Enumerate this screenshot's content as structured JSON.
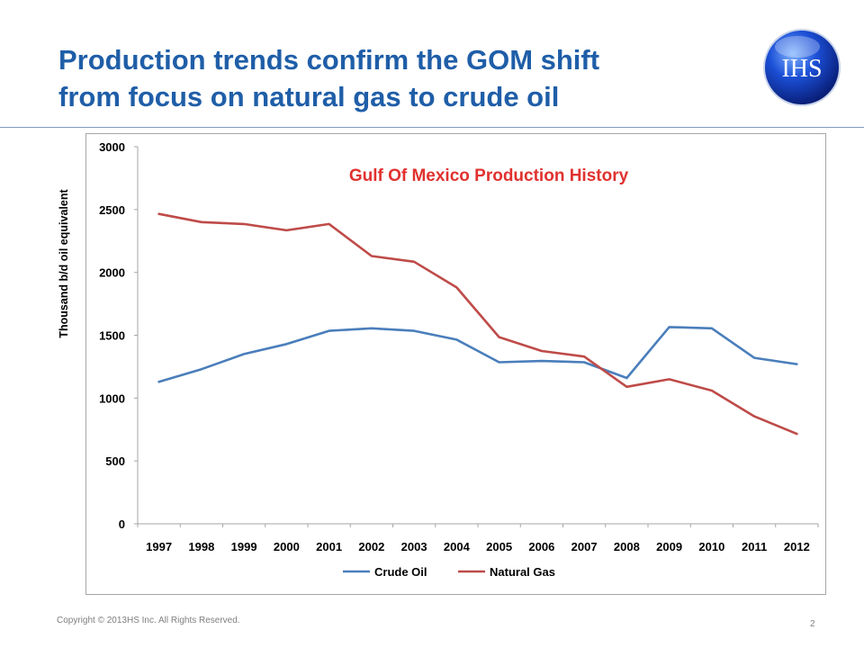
{
  "slide": {
    "title_line1": "Production trends confirm the GOM shift",
    "title_line2": "from  focus on natural gas to crude oil",
    "logo_text": "IHS",
    "y_axis_title": "Thousand b/d oil equivalent",
    "copyright": "Copyright © 2013HS Inc. All Rights Reserved.",
    "page_number": "2"
  },
  "colors": {
    "title": "#1f5ea8",
    "chart_title": "#e0322f",
    "crude_oil": "#4a7ebb",
    "natural_gas": "#be4b48",
    "axis": "#a6a6a6"
  },
  "chart_data": {
    "type": "line",
    "title": "Gulf Of Mexico Production History",
    "xlabel": "",
    "ylabel": "Thousand b/d oil equivalent",
    "categories": [
      "1997",
      "1998",
      "1999",
      "2000",
      "2001",
      "2002",
      "2003",
      "2004",
      "2005",
      "2006",
      "2007",
      "2008",
      "2009",
      "2010",
      "2011",
      "2012"
    ],
    "ylim": [
      0,
      3000
    ],
    "yticks": [
      0,
      500,
      1000,
      1500,
      2000,
      2500,
      3000
    ],
    "grid": false,
    "legend": "bottom",
    "series": [
      {
        "name": "Crude Oil",
        "color": "#4a7ebb",
        "values": [
          1130,
          1230,
          1350,
          1430,
          1535,
          1555,
          1535,
          1465,
          1285,
          1295,
          1285,
          1160,
          1565,
          1555,
          1320,
          1270
        ]
      },
      {
        "name": "Natural Gas",
        "color": "#be4b48",
        "values": [
          2465,
          2400,
          2385,
          2335,
          2385,
          2130,
          2085,
          1880,
          1485,
          1375,
          1330,
          1090,
          1150,
          1060,
          855,
          715
        ]
      }
    ]
  }
}
